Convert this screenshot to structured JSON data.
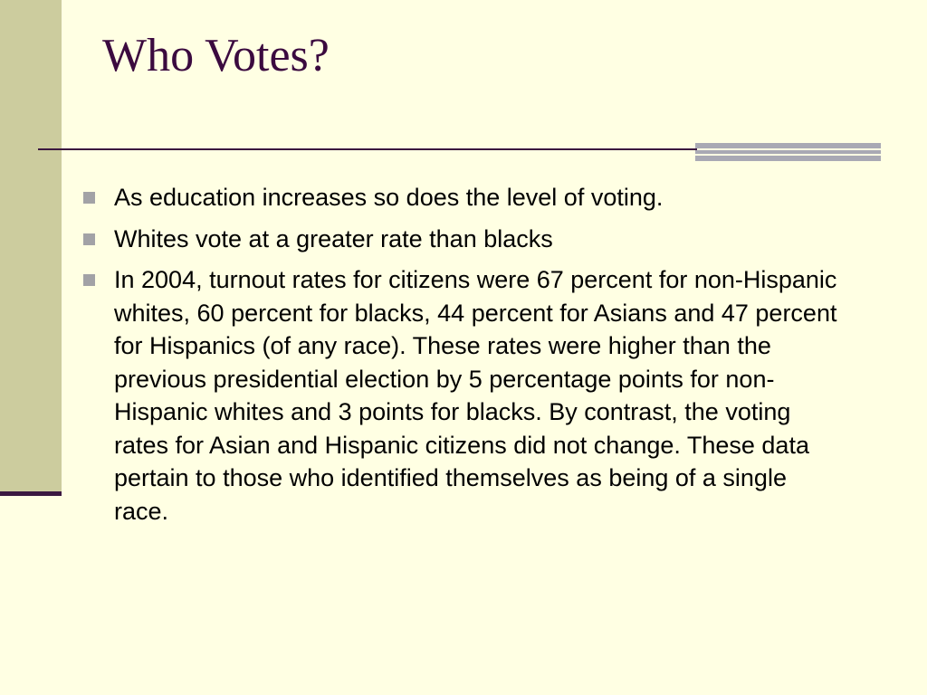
{
  "slide": {
    "title": "Who Votes?",
    "bullets": [
      {
        "text": "As education increases so does the level of voting."
      },
      {
        "text": "Whites vote at a greater rate than blacks"
      },
      {
        "text": "In 2004, turnout rates for citizens were 67 percent for non-Hispanic whites, 60 percent for blacks, 44 percent for Asians and 47 percent for Hispanics (of any race). These rates were higher than the previous presidential election by 5 percentage points for non-Hispanic whites and 3 points for blacks. By contrast, the voting rates for Asian and Hispanic citizens did not change. These data pertain to those who identified themselves as being of a single race."
      }
    ]
  },
  "colors": {
    "background": "#FFFFE3",
    "left_bar": "#CCCC9E",
    "title_text": "#3B0A3F",
    "rule": "#3B1840",
    "accent_rule": "#A9A9B4",
    "bullet_marker": "#A2A2A6"
  }
}
